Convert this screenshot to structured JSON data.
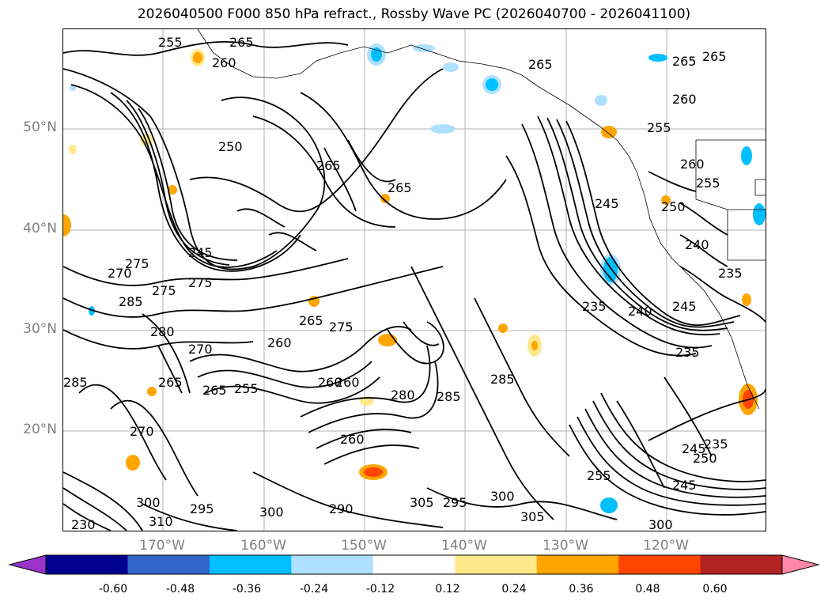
{
  "title": "2026040500 F000 850 hPa refract., Rossby Wave PC (2026040700 - 2026041100)",
  "lat_labels": [
    "50°N",
    "40°N",
    "30°N",
    "20°N"
  ],
  "lon_labels": [
    "170°W",
    "160°W",
    "150°W",
    "140°W",
    "130°W",
    "120°W"
  ],
  "colorbar": {
    "ticks": [
      "-0.60",
      "-0.48",
      "-0.36",
      "-0.24",
      "-0.12",
      "0.12",
      "0.24",
      "0.36",
      "0.48",
      "0.60"
    ],
    "colors": [
      "#9933cc",
      "#000090",
      "#3366cc",
      "#00bfff",
      "#aee0ff",
      "#ffffff",
      "#ffe98a",
      "#ffa500",
      "#ff4500",
      "#b22222",
      "#ff88aa"
    ]
  },
  "contour_labels": [
    "255",
    "265",
    "260",
    "265",
    "265",
    "265",
    "260",
    "255",
    "250",
    "265",
    "265",
    "245",
    "260",
    "255",
    "250",
    "240",
    "235",
    "275",
    "270",
    "275",
    "275",
    "285",
    "280",
    "270",
    "265",
    "260",
    "265",
    "275",
    "245",
    "235",
    "240",
    "245",
    "235",
    "285",
    "260",
    "265",
    "260",
    "255",
    "280",
    "285",
    "285",
    "270",
    "245",
    "235",
    "250",
    "245",
    "255",
    "300",
    "310",
    "295",
    "300",
    "290",
    "305",
    "295",
    "300",
    "305",
    "300",
    "230",
    "260"
  ]
}
